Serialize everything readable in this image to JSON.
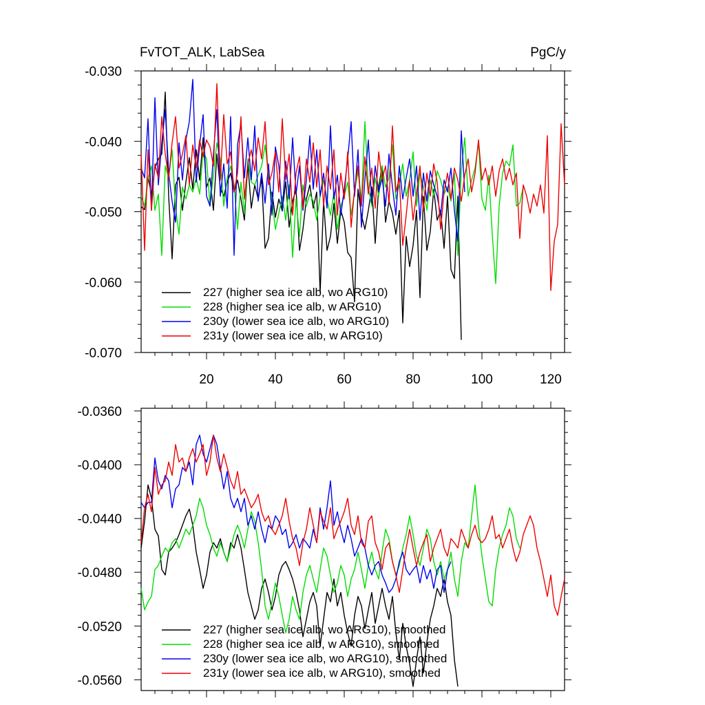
{
  "chart_data": [
    {
      "type": "line",
      "title_left": "FvTOT_ALK, LabSea",
      "title_right": "PgC/y",
      "xlim": [
        1,
        124
      ],
      "ylim": [
        -0.07,
        -0.03
      ],
      "x_ticks": [
        "20",
        "40",
        "60",
        "80",
        "100",
        "120"
      ],
      "y_ticks": [
        "-0.030",
        "-0.040",
        "-0.050",
        "-0.060",
        "-0.070"
      ],
      "series": [
        {
          "name": "227 (higher sea ice alb, wo ARG10)",
          "color": "#000000",
          "x_start": 1,
          "values": [
            -0.0493,
            -0.0497,
            -0.0452,
            -0.0475,
            -0.0438,
            -0.0425,
            -0.0418,
            -0.033,
            -0.0478,
            -0.0567,
            -0.0462,
            -0.0451,
            -0.0498,
            -0.0458,
            -0.0423,
            -0.0468,
            -0.0412,
            -0.0455,
            -0.0395,
            -0.0465,
            -0.0452,
            -0.0498,
            -0.0418,
            -0.0466,
            -0.0478,
            -0.0458,
            -0.0445,
            -0.0472,
            -0.0455,
            -0.0482,
            -0.0512,
            -0.0432,
            -0.0495,
            -0.0462,
            -0.0482,
            -0.0452,
            -0.0552,
            -0.0538,
            -0.0472,
            -0.0508,
            -0.0482,
            -0.0499,
            -0.0457,
            -0.0522,
            -0.0485,
            -0.0468,
            -0.0555,
            -0.0525,
            -0.0482,
            -0.0462,
            -0.0495,
            -0.0472,
            -0.0615,
            -0.0485,
            -0.0555,
            -0.0535,
            -0.0488,
            -0.0545,
            -0.0498,
            -0.0515,
            -0.0558,
            -0.0565,
            -0.0628,
            -0.0468,
            -0.0505,
            -0.0525,
            -0.0498,
            -0.0465,
            -0.0545,
            -0.0465,
            -0.0435,
            -0.0515,
            -0.0485,
            -0.0502,
            -0.0532,
            -0.0498,
            -0.0658,
            -0.0535,
            -0.0578,
            -0.0548,
            -0.0498,
            -0.0622,
            -0.0478,
            -0.0555,
            -0.0528,
            -0.0468,
            -0.0512,
            -0.0498,
            -0.0552,
            -0.0478,
            -0.0582,
            -0.0595,
            -0.0478,
            -0.0682
          ]
        },
        {
          "name": "228 (higher sea ice alb, w ARG10)",
          "color": "#00dd00",
          "x_start": 1,
          "values": [
            -0.0478,
            -0.0492,
            -0.0452,
            -0.0435,
            -0.0498,
            -0.0475,
            -0.0562,
            -0.0435,
            -0.0452,
            -0.0412,
            -0.0495,
            -0.0532,
            -0.0465,
            -0.0482,
            -0.0462,
            -0.0472,
            -0.0452,
            -0.0475,
            -0.0415,
            -0.0425,
            -0.0492,
            -0.0448,
            -0.0402,
            -0.0425,
            -0.0492,
            -0.0452,
            -0.0435,
            -0.0462,
            -0.0525,
            -0.0458,
            -0.0502,
            -0.0425,
            -0.0458,
            -0.0462,
            -0.0448,
            -0.0435,
            -0.0405,
            -0.0448,
            -0.0482,
            -0.0525,
            -0.0502,
            -0.0478,
            -0.0512,
            -0.0462,
            -0.0565,
            -0.0482,
            -0.0535,
            -0.0462,
            -0.0492,
            -0.0475,
            -0.0485,
            -0.0512,
            -0.0478,
            -0.0455,
            -0.0482,
            -0.0505,
            -0.0472,
            -0.0525,
            -0.0492,
            -0.0478,
            -0.0458,
            -0.0505,
            -0.0472,
            -0.0442,
            -0.0485,
            -0.0372,
            -0.0465,
            -0.0492,
            -0.0452,
            -0.0478,
            -0.0435,
            -0.0465,
            -0.0452,
            -0.0405,
            -0.0482,
            -0.0462,
            -0.0432,
            -0.0478,
            -0.0455,
            -0.0415,
            -0.0492,
            -0.0445,
            -0.0465,
            -0.0498,
            -0.0455,
            -0.0478,
            -0.0442,
            -0.0455,
            -0.0475,
            -0.0465,
            -0.0485,
            -0.0445,
            -0.0562,
            -0.0442,
            -0.0395,
            -0.0478,
            -0.0455,
            -0.0438,
            -0.0402,
            -0.0482,
            -0.0498,
            -0.0448,
            -0.0532,
            -0.0602,
            -0.0492,
            -0.0445,
            -0.0428,
            -0.0435,
            -0.0405,
            -0.0492,
            -0.0488,
            -0.0465
          ]
        },
        {
          "name": "230y (lower sea ice alb, wo ARG10)",
          "color": "#0000ee",
          "x_start": 1,
          "values": [
            -0.0438,
            -0.0452,
            -0.0368,
            -0.0498,
            -0.0338,
            -0.0462,
            -0.0402,
            -0.0355,
            -0.0445,
            -0.0485,
            -0.0515,
            -0.0402,
            -0.0455,
            -0.0398,
            -0.0372,
            -0.0312,
            -0.0458,
            -0.0405,
            -0.0362,
            -0.0478,
            -0.0492,
            -0.0418,
            -0.0355,
            -0.0478,
            -0.0432,
            -0.0495,
            -0.0365,
            -0.0562,
            -0.0405,
            -0.0375,
            -0.0452,
            -0.0395,
            -0.0455,
            -0.0378,
            -0.0485,
            -0.0445,
            -0.0488,
            -0.0432,
            -0.0505,
            -0.0408,
            -0.0435,
            -0.0498,
            -0.0428,
            -0.0482,
            -0.0395,
            -0.0475,
            -0.0435,
            -0.0498,
            -0.0455,
            -0.0392,
            -0.0468,
            -0.0412,
            -0.0478,
            -0.0445,
            -0.0495,
            -0.0378,
            -0.0482,
            -0.0448,
            -0.0505,
            -0.0468,
            -0.0425,
            -0.0372,
            -0.0478,
            -0.0412,
            -0.0522,
            -0.0455,
            -0.0398,
            -0.0488,
            -0.0435,
            -0.0472,
            -0.0452,
            -0.0492,
            -0.0418,
            -0.0465,
            -0.0505,
            -0.0435,
            -0.0482,
            -0.0452,
            -0.0425,
            -0.0478,
            -0.0435,
            -0.0512,
            -0.0445,
            -0.0485,
            -0.0442,
            -0.0462,
            -0.0478,
            -0.0505,
            -0.0455,
            -0.0472,
            -0.0438,
            -0.0498,
            -0.0542,
            -0.0385,
            -0.0472
          ]
        },
        {
          "name": "231y (lower sea ice alb, w ARG10)",
          "color": "#ee0000",
          "x_start": 1,
          "values": [
            -0.0418,
            -0.0555,
            -0.0412,
            -0.0498,
            -0.0432,
            -0.0452,
            -0.0365,
            -0.0418,
            -0.0452,
            -0.0402,
            -0.0365,
            -0.0438,
            -0.0418,
            -0.0392,
            -0.0462,
            -0.0405,
            -0.0438,
            -0.0398,
            -0.0422,
            -0.0398,
            -0.0408,
            -0.0435,
            -0.0318,
            -0.0455,
            -0.0362,
            -0.0432,
            -0.0415,
            -0.0472,
            -0.0445,
            -0.0365,
            -0.0482,
            -0.0432,
            -0.0412,
            -0.0442,
            -0.0395,
            -0.0425,
            -0.0372,
            -0.0462,
            -0.0445,
            -0.0415,
            -0.0472,
            -0.0368,
            -0.0455,
            -0.0418,
            -0.0505,
            -0.0445,
            -0.0422,
            -0.0495,
            -0.0425,
            -0.0458,
            -0.0402,
            -0.0465,
            -0.0412,
            -0.0492,
            -0.0435,
            -0.0468,
            -0.0412,
            -0.0505,
            -0.0445,
            -0.0482,
            -0.0415,
            -0.0522,
            -0.0468,
            -0.0435,
            -0.0492,
            -0.0422,
            -0.0475,
            -0.0438,
            -0.0495,
            -0.0415,
            -0.0455,
            -0.0435,
            -0.0488,
            -0.0378,
            -0.0472,
            -0.0452,
            -0.0548,
            -0.0505,
            -0.0455,
            -0.0512,
            -0.0475,
            -0.0435,
            -0.0498,
            -0.0445,
            -0.0478,
            -0.0432,
            -0.0458,
            -0.0525,
            -0.0472,
            -0.0445,
            -0.0482,
            -0.0438,
            -0.0455,
            -0.0485,
            -0.0448,
            -0.0425,
            -0.0472,
            -0.0445,
            -0.0398,
            -0.0455,
            -0.0438,
            -0.0462,
            -0.0435,
            -0.0478,
            -0.0442,
            -0.0425,
            -0.0455,
            -0.0438,
            -0.0462,
            -0.0445,
            -0.0538,
            -0.0462,
            -0.0478,
            -0.0502,
            -0.0475,
            -0.0492,
            -0.0462,
            -0.0502,
            -0.0392,
            -0.0612,
            -0.0542,
            -0.0518,
            -0.0375,
            -0.0462
          ]
        }
      ]
    },
    {
      "type": "line",
      "xlim": [
        1,
        124
      ],
      "ylim": [
        -0.0568,
        -0.0358
      ],
      "y_ticks": [
        "-0.0360",
        "-0.0400",
        "-0.0440",
        "-0.0480",
        "-0.0520",
        "-0.0560"
      ],
      "series": [
        {
          "name": "227 (higher sea ice alb, wo ARG10), smoothed",
          "color": "#000000",
          "x_start": 1,
          "values": [
            -0.0462,
            -0.0442,
            -0.0415,
            -0.0425,
            -0.0448,
            -0.0453,
            -0.0478,
            -0.0482,
            -0.0465,
            -0.0462,
            -0.0458,
            -0.0452,
            -0.0445,
            -0.0438,
            -0.0433,
            -0.0445,
            -0.0465,
            -0.0478,
            -0.0492,
            -0.0482,
            -0.0465,
            -0.0458,
            -0.0462,
            -0.0455,
            -0.0465,
            -0.0472,
            -0.0458,
            -0.0462,
            -0.0452,
            -0.0462,
            -0.0478,
            -0.0495,
            -0.0505,
            -0.0515,
            -0.0508,
            -0.0492,
            -0.0485,
            -0.0495,
            -0.0508,
            -0.0498,
            -0.0482,
            -0.0475,
            -0.0472,
            -0.0478,
            -0.0485,
            -0.0495,
            -0.0508,
            -0.0528,
            -0.0515,
            -0.0502,
            -0.0495,
            -0.0505,
            -0.0535,
            -0.0515,
            -0.0495,
            -0.0502,
            -0.0485,
            -0.0505,
            -0.0495,
            -0.0512,
            -0.0525,
            -0.0535,
            -0.0512,
            -0.0498,
            -0.0505,
            -0.0522,
            -0.0508,
            -0.0495,
            -0.0518,
            -0.0505,
            -0.0492,
            -0.0505,
            -0.0515,
            -0.0498,
            -0.0525,
            -0.0545,
            -0.0518,
            -0.0535,
            -0.0548,
            -0.0565,
            -0.0545,
            -0.0528,
            -0.0555,
            -0.0532,
            -0.0515,
            -0.0505,
            -0.0492,
            -0.0498,
            -0.0485,
            -0.0502,
            -0.0512,
            -0.0545,
            -0.0565
          ]
        },
        {
          "name": "228 (higher sea ice alb, w ARG10), smoothed",
          "color": "#00dd00",
          "x_start": 1,
          "values": [
            -0.0492,
            -0.0508,
            -0.0502,
            -0.0498,
            -0.0478,
            -0.0475,
            -0.0468,
            -0.0462,
            -0.0465,
            -0.0458,
            -0.0455,
            -0.0462,
            -0.0455,
            -0.0448,
            -0.0452,
            -0.0445,
            -0.0438,
            -0.0425,
            -0.0432,
            -0.0445,
            -0.0452,
            -0.0462,
            -0.0468,
            -0.0458,
            -0.0465,
            -0.0472,
            -0.0462,
            -0.0452,
            -0.0445,
            -0.0452,
            -0.0462,
            -0.0448,
            -0.0435,
            -0.0442,
            -0.0458,
            -0.0478,
            -0.0505,
            -0.0515,
            -0.0502,
            -0.0488,
            -0.0498,
            -0.0512,
            -0.0525,
            -0.0515,
            -0.0498,
            -0.0508,
            -0.0515,
            -0.0495,
            -0.0482,
            -0.0475,
            -0.0485,
            -0.0495,
            -0.0478,
            -0.0462,
            -0.0468,
            -0.0482,
            -0.0495,
            -0.0488,
            -0.0475,
            -0.0482,
            -0.0498,
            -0.0485,
            -0.0478,
            -0.0465,
            -0.0478,
            -0.0492,
            -0.0475,
            -0.0465,
            -0.0478,
            -0.0485,
            -0.0465,
            -0.0448,
            -0.0455,
            -0.0472,
            -0.0482,
            -0.0475,
            -0.0462,
            -0.0452,
            -0.0438,
            -0.0452,
            -0.0468,
            -0.0475,
            -0.0462,
            -0.0448,
            -0.0455,
            -0.0472,
            -0.0482,
            -0.0472,
            -0.0485,
            -0.0478,
            -0.0465,
            -0.0485,
            -0.0498,
            -0.0472,
            -0.0458,
            -0.0462,
            -0.0438,
            -0.0415,
            -0.0445,
            -0.0468,
            -0.0485,
            -0.0502,
            -0.0505,
            -0.0478,
            -0.0462,
            -0.0452,
            -0.0445,
            -0.0432,
            -0.0438,
            -0.0455,
            -0.0462
          ]
        },
        {
          "name": "230y (lower sea ice alb, wo ARG10), smoothed",
          "color": "#0000ee",
          "x_start": 1,
          "values": [
            -0.0428,
            -0.0432,
            -0.0428,
            -0.0428,
            -0.0395,
            -0.0412,
            -0.0418,
            -0.0408,
            -0.0412,
            -0.0432,
            -0.0418,
            -0.0415,
            -0.0402,
            -0.0405,
            -0.0398,
            -0.0415,
            -0.0385,
            -0.0378,
            -0.0392,
            -0.0398,
            -0.0388,
            -0.0378,
            -0.0385,
            -0.0402,
            -0.0418,
            -0.0405,
            -0.0425,
            -0.0432,
            -0.0425,
            -0.0435,
            -0.0425,
            -0.0445,
            -0.0438,
            -0.0448,
            -0.0435,
            -0.0448,
            -0.0458,
            -0.0445,
            -0.0448,
            -0.0438,
            -0.0442,
            -0.0452,
            -0.0448,
            -0.0462,
            -0.0458,
            -0.0452,
            -0.0462,
            -0.0455,
            -0.0458,
            -0.0462,
            -0.0448,
            -0.0458,
            -0.0432,
            -0.0448,
            -0.0432,
            -0.0412,
            -0.0445,
            -0.0435,
            -0.0448,
            -0.0458,
            -0.0445,
            -0.0455,
            -0.0468,
            -0.0462,
            -0.0455,
            -0.0462,
            -0.0475,
            -0.0482,
            -0.0475,
            -0.0472,
            -0.0482,
            -0.0488,
            -0.0495,
            -0.0492,
            -0.0485,
            -0.0472,
            -0.0465,
            -0.0478,
            -0.0482,
            -0.0478,
            -0.0475,
            -0.0488,
            -0.0475,
            -0.0485,
            -0.0478,
            -0.0492,
            -0.0478,
            -0.0475,
            -0.0495,
            -0.0478,
            -0.0472
          ]
        },
        {
          "name": "231y (lower sea ice alb, w ARG10), smoothed",
          "color": "#ee0000",
          "x_start": 1,
          "values": [
            -0.0458,
            -0.0432,
            -0.0422,
            -0.0435,
            -0.0402,
            -0.0422,
            -0.0415,
            -0.0412,
            -0.0398,
            -0.0408,
            -0.0385,
            -0.0398,
            -0.0395,
            -0.0405,
            -0.0395,
            -0.0388,
            -0.0398,
            -0.0392,
            -0.0385,
            -0.0408,
            -0.0398,
            -0.0378,
            -0.0395,
            -0.0405,
            -0.0392,
            -0.0402,
            -0.0412,
            -0.0418,
            -0.0405,
            -0.0422,
            -0.0418,
            -0.0425,
            -0.0432,
            -0.0428,
            -0.0422,
            -0.0435,
            -0.0442,
            -0.0438,
            -0.0448,
            -0.0452,
            -0.0445,
            -0.0438,
            -0.0425,
            -0.0442,
            -0.0455,
            -0.0462,
            -0.0475,
            -0.0458,
            -0.0448,
            -0.0432,
            -0.0445,
            -0.0458,
            -0.0435,
            -0.0442,
            -0.0448,
            -0.0432,
            -0.0455,
            -0.0448,
            -0.0442,
            -0.0435,
            -0.0425,
            -0.0445,
            -0.0452,
            -0.0438,
            -0.0458,
            -0.0462,
            -0.0442,
            -0.0438,
            -0.0458,
            -0.0465,
            -0.0478,
            -0.0462,
            -0.0458,
            -0.0472,
            -0.0482,
            -0.0495,
            -0.0478,
            -0.0462,
            -0.0448,
            -0.0462,
            -0.0475,
            -0.0465,
            -0.0458,
            -0.0452,
            -0.0472,
            -0.0462,
            -0.0455,
            -0.0448,
            -0.0462,
            -0.0468,
            -0.0455,
            -0.0458,
            -0.0462,
            -0.0448,
            -0.0455,
            -0.0462,
            -0.0452,
            -0.0445,
            -0.0455,
            -0.0458,
            -0.0455,
            -0.0448,
            -0.0438,
            -0.0455,
            -0.0452,
            -0.0462,
            -0.0455,
            -0.0448,
            -0.0462,
            -0.0472,
            -0.0465,
            -0.0452,
            -0.0445,
            -0.0438,
            -0.0445,
            -0.0462,
            -0.0472,
            -0.0485,
            -0.0498,
            -0.0482,
            -0.0505,
            -0.0512,
            -0.0498,
            -0.0485
          ]
        }
      ]
    }
  ]
}
